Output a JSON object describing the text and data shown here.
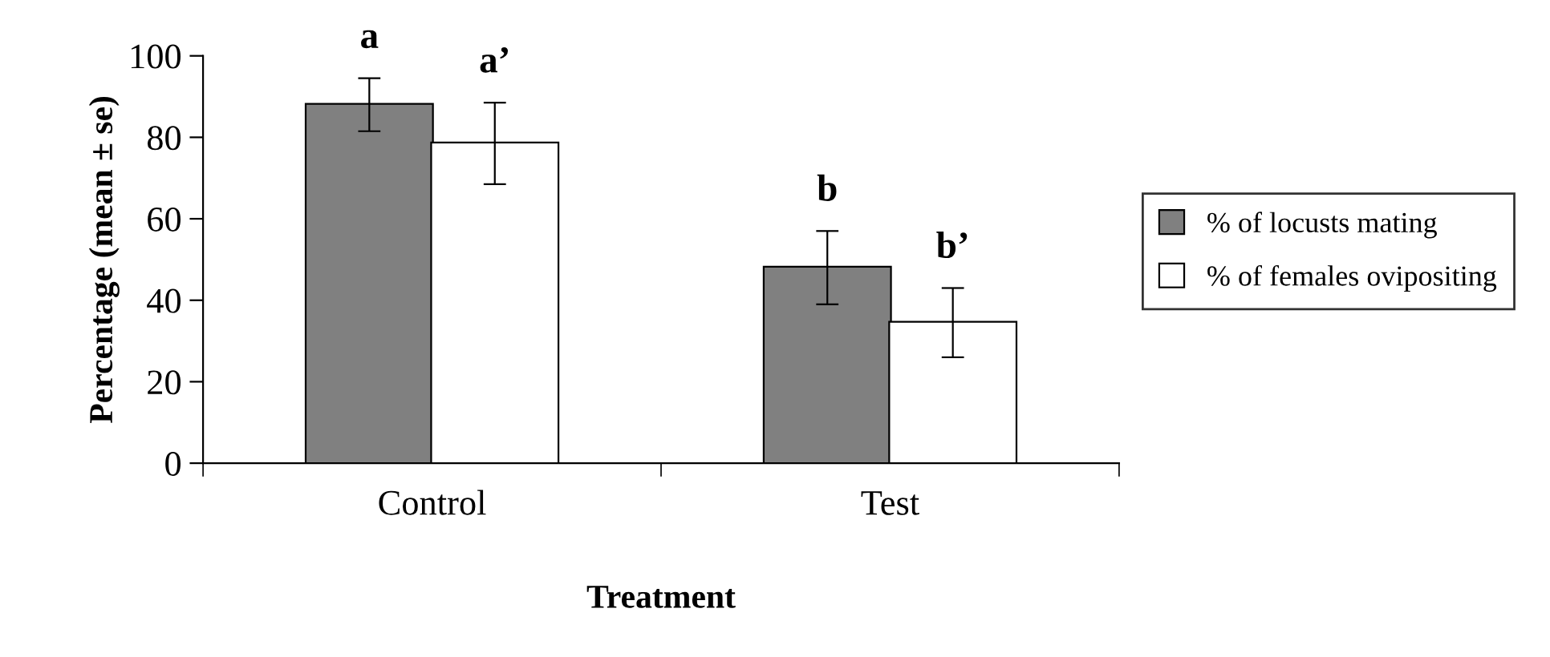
{
  "chart_data": {
    "type": "bar",
    "xlabel": "Treatment",
    "ylabel": "Percentage (mean ± se)",
    "categories": [
      "Control",
      "Test"
    ],
    "series": [
      {
        "name": "% of locusts mating",
        "color": "#808080",
        "values": [
          88,
          48
        ],
        "errors": [
          6.5,
          9
        ]
      },
      {
        "name": "% of females ovipositing",
        "color": "#ffffff",
        "values": [
          78.5,
          34.5
        ],
        "errors": [
          10,
          8.5
        ]
      }
    ],
    "annotations": [
      "a",
      "a’",
      "b",
      "b’"
    ],
    "ylim": [
      0,
      100
    ],
    "yticks": [
      0,
      20,
      40,
      60,
      80,
      100
    ],
    "grid": false,
    "legend": "right"
  }
}
